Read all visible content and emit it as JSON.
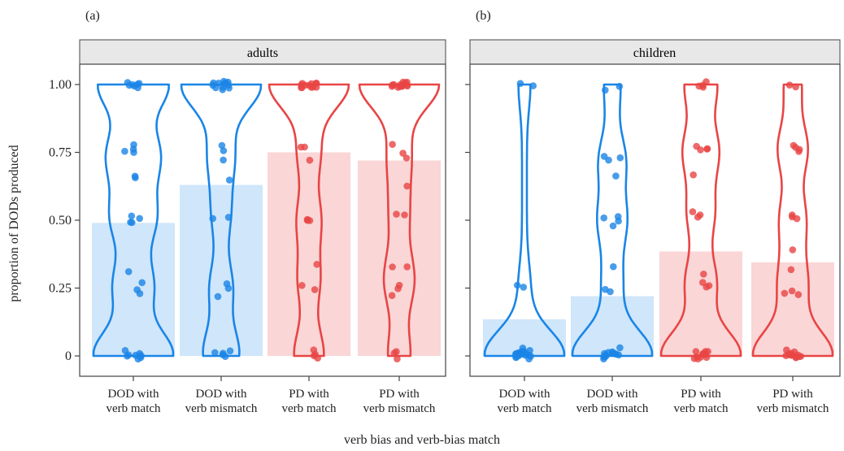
{
  "ylabel": "proportion of DODs produced",
  "xlabel": "verb bias and verb-bias match",
  "y_ticks": [
    "1.00",
    "0.75",
    "0.50",
    "0.25",
    "0"
  ],
  "category_lines": [
    [
      "DOD with",
      "verb match"
    ],
    [
      "DOD with",
      "verb mismatch"
    ],
    [
      "PD with",
      "verb match"
    ],
    [
      "PD with",
      "verb mismatch"
    ]
  ],
  "panels": [
    {
      "label": "(a)",
      "strip": "adults"
    },
    {
      "label": "(b)",
      "strip": "children"
    }
  ],
  "colors": {
    "DOD": "#1a85e6",
    "PD": "#e84545",
    "DOD_fill": "#cfe6fb",
    "PD_fill": "#fad6d6",
    "frame": "#444444",
    "strip_bg": "#e8e8e8"
  },
  "chart_data": [
    {
      "type": "bar",
      "panel": "adults",
      "overlay": [
        "violin",
        "jittered points"
      ],
      "categories": [
        "DOD with verb match",
        "DOD with verb mismatch",
        "PD with verb match",
        "PD with verb mismatch"
      ],
      "values": [
        0.49,
        0.63,
        0.75,
        0.72
      ],
      "ylim": [
        0,
        1
      ],
      "grid": false,
      "points": [
        [
          1,
          1,
          1,
          1,
          1,
          1,
          1,
          0.77,
          0.76,
          0.77,
          0.75,
          0.66,
          0.66,
          0.51,
          0.51,
          0.5,
          0.49,
          0.31,
          0.26,
          0.24,
          0.23,
          0.02,
          0.01,
          0,
          0,
          0,
          0,
          0,
          0
        ],
        [
          1,
          1,
          1,
          1,
          1,
          1,
          1,
          1,
          1,
          1,
          0.99,
          0.98,
          0.77,
          0.76,
          0.73,
          0.65,
          0.52,
          0.51,
          0.27,
          0.25,
          0.23,
          0.02,
          0.01,
          0.01,
          0,
          0
        ],
        [
          1,
          1,
          1,
          1,
          1,
          1,
          1,
          1,
          1,
          1,
          1,
          1,
          0.77,
          0.76,
          0.72,
          0.51,
          0.5,
          0.5,
          0.33,
          0.27,
          0.25,
          0.02,
          0,
          0,
          0
        ],
        [
          1,
          1,
          1,
          1,
          1,
          1,
          1,
          1,
          1,
          1,
          1,
          1,
          1,
          0.77,
          0.75,
          0.72,
          0.62,
          0.52,
          0.51,
          0.34,
          0.33,
          0.26,
          0.25,
          0.23,
          0.01,
          0,
          0
        ]
      ]
    },
    {
      "type": "bar",
      "panel": "children",
      "overlay": [
        "violin",
        "jittered points"
      ],
      "categories": [
        "DOD with verb match",
        "DOD with verb mismatch",
        "PD with verb match",
        "PD with verb mismatch"
      ],
      "values": [
        0.135,
        0.22,
        0.385,
        0.345
      ],
      "ylim": [
        0,
        1
      ],
      "grid": false,
      "points": [
        [
          1,
          1,
          0.26,
          0.25,
          0.02,
          0.02,
          0.02,
          0.01,
          0.01,
          0.01,
          0.01,
          0,
          0,
          0,
          0,
          0,
          0,
          0,
          0,
          0,
          0,
          0,
          0,
          0,
          0
        ],
        [
          1,
          0.98,
          0.74,
          0.73,
          0.73,
          0.67,
          0.52,
          0.5,
          0.49,
          0.49,
          0.33,
          0.25,
          0.24,
          0.02,
          0.02,
          0.01,
          0.01,
          0.01,
          0,
          0,
          0,
          0,
          0,
          0,
          0,
          0
        ],
        [
          1,
          1,
          1,
          1,
          0.77,
          0.77,
          0.76,
          0.76,
          0.66,
          0.52,
          0.52,
          0.52,
          0.31,
          0.26,
          0.26,
          0.25,
          0.02,
          0.01,
          0.01,
          0,
          0,
          0,
          0,
          0,
          0,
          0,
          0
        ],
        [
          1,
          1,
          0.77,
          0.77,
          0.76,
          0.75,
          0.52,
          0.52,
          0.51,
          0.4,
          0.31,
          0.25,
          0.24,
          0.23,
          0.02,
          0.01,
          0.01,
          0.01,
          0,
          0,
          0,
          0,
          0,
          0,
          0,
          0
        ]
      ]
    }
  ]
}
